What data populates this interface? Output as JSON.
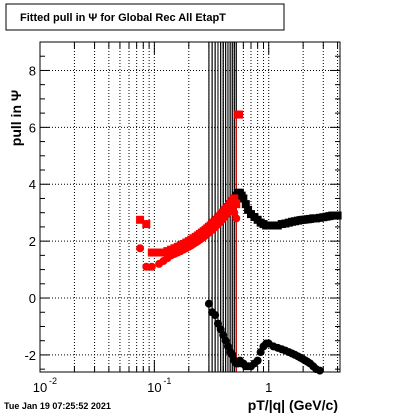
{
  "title": "Fitted pull in  Ψ  for Global Rec All EtapT",
  "timestamp": "Tue Jan 19 07:25:52 2021",
  "chart_data": {
    "type": "scatter",
    "title": "Fitted pull in  Ψ  for Global Rec All EtapT",
    "xlabel": "pT/|q| (GeV/c)",
    "ylabel": "pull in  Ψ",
    "x_log": true,
    "xlim": [
      0.01,
      4.2
    ],
    "ylim": [
      -2.6,
      9.0
    ],
    "grid": true,
    "x_tick_labels": [
      {
        "x": 0.01,
        "base": "10",
        "exp": "-2"
      },
      {
        "x": 0.1,
        "base": "10",
        "exp": "-1"
      },
      {
        "x": 1,
        "base": "1",
        "exp": ""
      }
    ],
    "y_ticks": [
      -2,
      0,
      2,
      4,
      6,
      8
    ],
    "series": [
      {
        "color": "#000000",
        "marker": "square",
        "x": [
          0.3,
          0.32,
          0.34,
          0.36,
          0.38,
          0.4,
          0.42,
          0.44,
          0.46,
          0.48,
          0.5,
          0.52,
          0.54,
          0.56,
          0.58,
          0.6,
          0.63,
          0.66,
          0.7,
          0.75,
          0.8,
          0.85,
          0.9,
          0.95,
          1.0,
          1.1,
          1.2,
          1.3,
          1.4,
          1.5,
          1.6,
          1.7,
          1.8,
          1.9,
          2.0,
          2.1,
          2.2,
          2.3,
          2.45,
          2.6,
          2.8,
          3.0,
          3.2,
          3.4,
          3.6,
          3.8,
          4.0
        ],
        "y": [
          2.4,
          2.6,
          2.7,
          2.8,
          2.9,
          3.0,
          3.1,
          3.2,
          3.3,
          3.4,
          3.5,
          3.6,
          3.7,
          3.7,
          3.6,
          3.5,
          3.3,
          3.1,
          2.95,
          2.85,
          2.75,
          2.65,
          2.6,
          2.55,
          2.55,
          2.55,
          2.55,
          2.6,
          2.62,
          2.65,
          2.68,
          2.7,
          2.72,
          2.74,
          2.75,
          2.76,
          2.77,
          2.78,
          2.8,
          2.8,
          2.82,
          2.84,
          2.86,
          2.88,
          2.9,
          2.9,
          2.9
        ]
      },
      {
        "color": "#000000",
        "marker": "circle",
        "x": [
          0.3,
          0.32,
          0.34,
          0.36,
          0.38,
          0.4,
          0.42,
          0.44,
          0.46,
          0.48,
          0.5,
          0.52,
          0.54,
          0.56,
          0.58,
          0.6,
          0.63,
          0.66,
          0.7,
          0.75,
          0.8,
          0.85,
          0.9,
          0.95,
          1.0,
          1.1,
          1.2,
          1.3,
          1.4,
          1.5,
          1.6,
          1.7,
          1.8,
          1.9,
          2.0,
          2.1,
          2.2,
          2.3,
          2.45,
          2.6,
          2.8
        ],
        "y": [
          -0.2,
          -0.5,
          -0.6,
          -0.9,
          -1.1,
          -1.3,
          -1.5,
          -1.7,
          -1.9,
          -2.0,
          -2.2,
          -2.3,
          -2.3,
          -2.2,
          -2.3,
          -2.3,
          -2.4,
          -2.4,
          -2.4,
          -2.3,
          -2.2,
          -1.9,
          -1.7,
          -1.6,
          -1.6,
          -1.7,
          -1.75,
          -1.8,
          -1.85,
          -1.9,
          -1.95,
          -2.0,
          -2.05,
          -2.1,
          -2.15,
          -2.2,
          -2.25,
          -2.3,
          -2.4,
          -2.5,
          -2.55
        ]
      },
      {
        "color": "#ff0000",
        "marker": "square",
        "x": [
          0.075,
          0.085,
          0.095,
          0.11,
          0.12,
          0.13,
          0.14,
          0.15,
          0.16,
          0.17,
          0.18,
          0.19,
          0.2,
          0.21,
          0.22,
          0.23,
          0.24,
          0.25,
          0.26,
          0.27,
          0.28,
          0.29,
          0.3,
          0.31,
          0.32,
          0.33,
          0.34,
          0.35,
          0.36,
          0.37,
          0.38,
          0.39,
          0.4,
          0.41,
          0.42,
          0.43,
          0.44,
          0.45,
          0.46,
          0.47,
          0.48,
          0.49,
          0.5,
          0.52,
          0.54,
          0.55
        ],
        "y": [
          2.75,
          2.6,
          1.6,
          1.6,
          1.6,
          1.65,
          1.7,
          1.75,
          1.8,
          1.85,
          1.9,
          1.95,
          2.0,
          2.05,
          2.1,
          2.15,
          2.2,
          2.25,
          2.3,
          2.35,
          2.4,
          2.45,
          2.5,
          2.55,
          2.6,
          2.65,
          2.7,
          2.75,
          2.8,
          2.85,
          2.9,
          2.95,
          3.0,
          3.05,
          3.1,
          3.15,
          3.2,
          3.25,
          3.3,
          3.35,
          3.4,
          3.45,
          3.5,
          3.3,
          6.45,
          6.45
        ]
      },
      {
        "color": "#ff0000",
        "marker": "circle",
        "x": [
          0.075,
          0.085,
          0.095,
          0.11,
          0.12,
          0.13,
          0.14,
          0.15,
          0.16,
          0.17,
          0.18,
          0.19,
          0.2,
          0.21,
          0.22,
          0.23,
          0.24,
          0.25,
          0.26,
          0.27,
          0.28,
          0.29,
          0.3,
          0.31,
          0.32,
          0.33,
          0.34,
          0.35,
          0.36,
          0.37,
          0.38,
          0.39,
          0.4,
          0.41,
          0.42,
          0.43,
          0.44,
          0.45,
          0.46,
          0.47,
          0.48,
          0.5,
          0.52
        ],
        "y": [
          1.75,
          1.1,
          1.1,
          1.2,
          1.3,
          1.4,
          1.5,
          1.55,
          1.6,
          1.65,
          1.7,
          1.75,
          1.8,
          1.85,
          1.9,
          1.95,
          2.0,
          2.05,
          2.1,
          2.15,
          2.2,
          2.25,
          2.3,
          2.35,
          2.4,
          2.45,
          2.5,
          2.55,
          2.6,
          2.65,
          2.7,
          2.75,
          2.8,
          2.85,
          2.9,
          2.95,
          3.0,
          3.05,
          3.1,
          3.15,
          3.2,
          3.0,
          2.8
        ]
      }
    ]
  }
}
